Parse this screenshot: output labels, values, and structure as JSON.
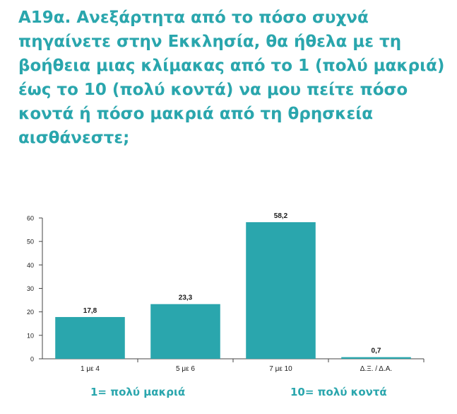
{
  "title": "A19α. Ανεξάρτητα από το πόσο συχνά πηγαίνετε στην Εκκλησία, θα ήθελα με τη βοήθεια μιας κλίμακας από το 1 (πολύ μακριά) έως το 10 (πολύ κοντά) να μου πείτε πόσο κοντά ή πόσο μακριά από τη θρησκεία αισθάνεστε;",
  "scale_labels": {
    "left": "1= πολύ μακριά",
    "right": "10= πολύ κοντά"
  },
  "colors": {
    "bar": "#2aa6ad",
    "title": "#2aa6ad",
    "axis": "#444444",
    "text": "#1a1a1a"
  },
  "chart_data": {
    "type": "bar",
    "title": "",
    "xlabel": "",
    "ylabel": "",
    "categories": [
      "1 με 4",
      "5 με 6",
      "7 με 10",
      "Δ.Ξ. / Δ.Α."
    ],
    "values": [
      17.8,
      23.3,
      58.2,
      0.7
    ],
    "value_labels": [
      "17,8",
      "23,3",
      "58,2",
      "0,7"
    ],
    "ylim": [
      0,
      60
    ],
    "yticks": [
      0,
      10,
      20,
      30,
      40,
      50,
      60
    ],
    "ytick_labels": [
      "0",
      "10",
      "20",
      "30",
      "40",
      "50",
      "60"
    ],
    "grid": false,
    "legend": "none"
  }
}
